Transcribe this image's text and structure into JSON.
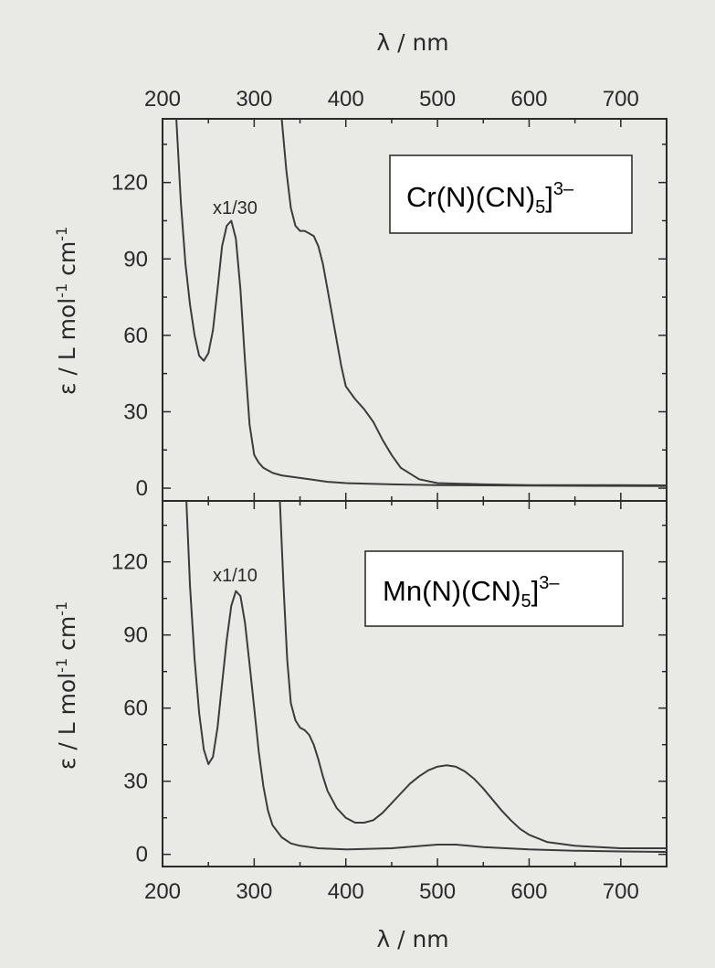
{
  "chart_data": [
    {
      "type": "line",
      "panel": "top",
      "xlabel": "λ / nm",
      "xlabel_position": "top",
      "ylabel": "ε / L mol-1 cm-1",
      "ylabel_parts": {
        "main": "ε / L mol",
        "exp1": "-1",
        "mid": " cm",
        "exp2": "-1"
      },
      "xlim": [
        200,
        750
      ],
      "ylim": [
        -5,
        145
      ],
      "xticks": [
        200,
        300,
        400,
        500,
        600,
        700
      ],
      "yticks": [
        0,
        30,
        60,
        90,
        120
      ],
      "legend": {
        "text": "Cr(N)(CN)5]3–",
        "main": "Cr(N)(CN)",
        "sub": "5",
        "tail": "]",
        "sup": "3–"
      },
      "annotation": "x1/30",
      "series": [
        {
          "scale_note": "x1/30",
          "x": [
            215,
            220,
            225,
            230,
            235,
            240,
            245,
            250,
            255,
            260,
            265,
            270,
            275,
            280,
            285,
            290,
            295,
            300,
            305,
            310,
            320,
            330,
            340,
            350,
            360,
            380,
            400,
            450,
            500,
            600,
            750
          ],
          "y": [
            145,
            112,
            88,
            72,
            60,
            52,
            50,
            53,
            62,
            78,
            95,
            103,
            105,
            98,
            78,
            50,
            25,
            13,
            10,
            8,
            6,
            5,
            4.5,
            4,
            3.5,
            2.5,
            2,
            1.5,
            1.2,
            1,
            0.8
          ]
        },
        {
          "x": [
            330,
            335,
            340,
            345,
            350,
            355,
            360,
            365,
            370,
            375,
            380,
            385,
            390,
            395,
            400,
            410,
            420,
            430,
            440,
            450,
            460,
            480,
            500,
            550,
            600,
            700,
            750
          ],
          "y": [
            145,
            125,
            110,
            103,
            101,
            101,
            100,
            99,
            95,
            88,
            78,
            68,
            58,
            48,
            40,
            35,
            31,
            26,
            19,
            13,
            8,
            3.5,
            2,
            1.5,
            1.2,
            1.2,
            1.1
          ]
        }
      ]
    },
    {
      "type": "line",
      "panel": "bottom",
      "xlabel": "λ / nm",
      "ylabel": "ε / L mol-1 cm-1",
      "ylabel_parts": {
        "main": "ε / L mol",
        "exp1": "-1",
        "mid": " cm",
        "exp2": "-1"
      },
      "xlim": [
        200,
        750
      ],
      "ylim": [
        -5,
        145
      ],
      "xticks": [
        200,
        300,
        400,
        500,
        600,
        700
      ],
      "yticks": [
        0,
        30,
        60,
        90,
        120
      ],
      "legend": {
        "text": "Mn(N)(CN)5]3–",
        "main": "Mn(N)(CN)",
        "sub": "5",
        "tail": "]",
        "sup": "3–"
      },
      "annotation": "x1/10",
      "series": [
        {
          "scale_note": "x1/10",
          "x": [
            226,
            230,
            235,
            240,
            245,
            250,
            255,
            260,
            265,
            270,
            275,
            280,
            285,
            290,
            295,
            300,
            305,
            310,
            315,
            320,
            330,
            340,
            350,
            370,
            400,
            450,
            500,
            520,
            550,
            600,
            650,
            700,
            750
          ],
          "y": [
            145,
            110,
            80,
            58,
            43,
            37,
            40,
            52,
            70,
            88,
            102,
            108,
            106,
            95,
            78,
            60,
            42,
            28,
            18,
            12,
            7,
            4.5,
            3.5,
            2.5,
            2,
            2.5,
            4,
            4,
            3,
            2,
            1.5,
            1.2,
            1
          ],
          "clip_from": [
            226,
            145
          ]
        },
        {
          "x": [
            328,
            332,
            336,
            340,
            345,
            350,
            355,
            360,
            365,
            370,
            375,
            380,
            390,
            400,
            410,
            420,
            430,
            440,
            450,
            460,
            470,
            480,
            490,
            500,
            510,
            520,
            530,
            540,
            550,
            560,
            570,
            580,
            590,
            600,
            620,
            650,
            700,
            750
          ],
          "y": [
            145,
            110,
            80,
            62,
            55,
            52,
            51,
            49,
            45,
            39,
            32,
            26,
            19,
            15,
            13,
            13,
            14,
            17,
            21,
            25,
            29,
            32,
            34.5,
            36,
            36.5,
            36,
            34,
            31,
            27,
            22.5,
            18,
            14,
            10.5,
            8,
            5,
            3.5,
            2.5,
            2.5
          ]
        }
      ]
    }
  ]
}
